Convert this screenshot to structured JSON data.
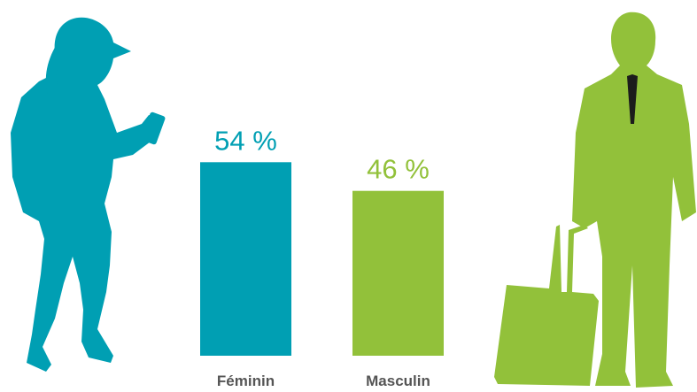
{
  "chart_data": {
    "type": "bar",
    "categories": [
      "Féminin",
      "Masculin"
    ],
    "values": [
      54,
      46
    ],
    "value_labels": [
      "54 %",
      "46 %"
    ],
    "colors": [
      "#009fb3",
      "#92c13a"
    ]
  }
}
